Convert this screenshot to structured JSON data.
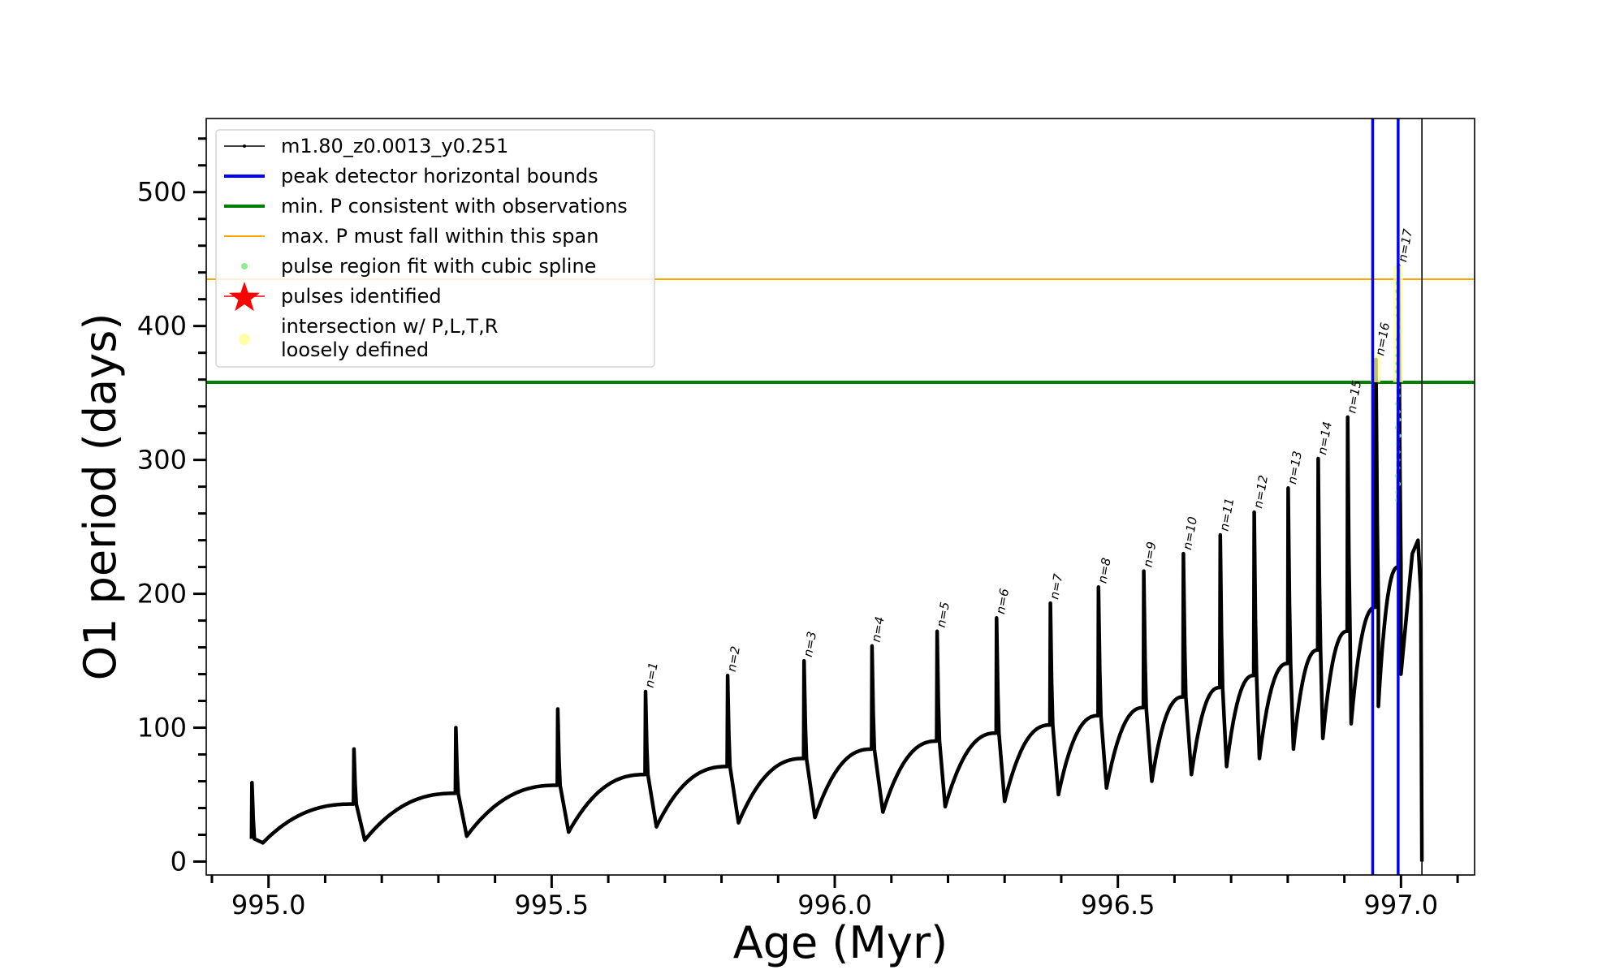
{
  "chart_data": {
    "type": "line",
    "xlabel": "Age (Myr)",
    "ylabel": "O1 period (days)",
    "xlim": [
      994.89,
      997.13
    ],
    "ylim": [
      -10,
      555
    ],
    "x_ticks": [
      995.0,
      995.5,
      996.0,
      996.5,
      997.0
    ],
    "x_tick_labels": [
      "995.0",
      "995.5",
      "996.0",
      "996.5",
      "997.0"
    ],
    "y_ticks": [
      0,
      100,
      200,
      300,
      400,
      500
    ],
    "y_tick_labels": [
      "0",
      "100",
      "200",
      "300",
      "400",
      "500"
    ],
    "grid": false,
    "legend_position": "upper-left",
    "legend": [
      {
        "label": "m1.80_z0.0013_y0.251",
        "style": "line-marker",
        "color": "#000000"
      },
      {
        "label": "peak detector horizontal bounds",
        "style": "line",
        "color": "#0000ff"
      },
      {
        "label": "min. P consistent with observations",
        "style": "line",
        "color": "#008000"
      },
      {
        "label": "max. P must fall within this span",
        "style": "thin-line",
        "color": "#ffa500"
      },
      {
        "label": "pulse region fit with cubic spline",
        "style": "dot",
        "color": "#90ee90"
      },
      {
        "label": "pulses identified",
        "style": "star",
        "color": "#ff0000"
      },
      {
        "label": "intersection w/ P,L,T,R",
        "label2": "loosely defined",
        "style": "dot",
        "color": "#ffffaa"
      }
    ],
    "series": [
      {
        "name": "m1.80_z0.0013_y0.251",
        "color": "#000000",
        "pulses": [
          {
            "age": 994.97,
            "peak": 59,
            "start": 17,
            "min_dip": 14,
            "min_age": 994.99
          },
          {
            "age": 995.15,
            "peak": 84,
            "start": 43,
            "min_dip": 16,
            "min_age": 995.17
          },
          {
            "age": 995.33,
            "peak": 100,
            "start": 51,
            "min_dip": 19,
            "min_age": 995.35
          },
          {
            "age": 995.51,
            "peak": 114,
            "start": 57,
            "min_dip": 22,
            "min_age": 995.53
          },
          {
            "age": 995.665,
            "peak": 127,
            "start": 65,
            "min_dip": 26,
            "min_age": 995.685
          },
          {
            "age": 995.81,
            "peak": 139,
            "start": 71,
            "min_dip": 29,
            "min_age": 995.83
          },
          {
            "age": 995.945,
            "peak": 150,
            "start": 77,
            "min_dip": 33,
            "min_age": 995.965
          },
          {
            "age": 996.065,
            "peak": 161,
            "start": 84,
            "min_dip": 37,
            "min_age": 996.085
          },
          {
            "age": 996.18,
            "peak": 172,
            "start": 90,
            "min_dip": 41,
            "min_age": 996.195
          },
          {
            "age": 996.285,
            "peak": 182,
            "start": 96,
            "min_dip": 45,
            "min_age": 996.3
          },
          {
            "age": 996.38,
            "peak": 193,
            "start": 102,
            "min_dip": 50,
            "min_age": 996.395
          },
          {
            "age": 996.465,
            "peak": 205,
            "start": 109,
            "min_dip": 55,
            "min_age": 996.48
          },
          {
            "age": 996.545,
            "peak": 217,
            "start": 115,
            "min_dip": 60,
            "min_age": 996.56
          },
          {
            "age": 996.615,
            "peak": 230,
            "start": 123,
            "min_dip": 65,
            "min_age": 996.63
          },
          {
            "age": 996.68,
            "peak": 244,
            "start": 130,
            "min_dip": 71,
            "min_age": 996.692
          },
          {
            "age": 996.74,
            "peak": 261,
            "start": 139,
            "min_dip": 77,
            "min_age": 996.75
          },
          {
            "age": 996.8,
            "peak": 279,
            "start": 148,
            "min_dip": 84,
            "min_age": 996.81
          },
          {
            "age": 996.853,
            "peak": 301,
            "start": 158,
            "min_dip": 92,
            "min_age": 996.862
          },
          {
            "age": 996.905,
            "peak": 332,
            "start": 172,
            "min_dip": 103,
            "min_age": 996.912
          },
          {
            "age": 996.955,
            "peak": 375,
            "start": 190,
            "min_dip": 116,
            "min_age": 996.96
          },
          {
            "age": 996.995,
            "peak": 445,
            "start": 220,
            "min_dip": 140,
            "min_age": 997.0
          }
        ],
        "final_branch": [
          [
            997.0,
            140
          ],
          [
            997.02,
            230
          ],
          [
            997.03,
            240
          ],
          [
            997.035,
            200
          ],
          [
            997.037,
            0
          ]
        ]
      }
    ],
    "pulse_labels": [
      "n=1",
      "n=2",
      "n=3",
      "n=4",
      "n=5",
      "n=6",
      "n=7",
      "n=8",
      "n=9",
      "n=10",
      "n=11",
      "n=12",
      "n=13",
      "n=14",
      "n=15",
      "n=16",
      "n=17"
    ],
    "pulse_label_ages": [
      995.665,
      995.81,
      995.945,
      996.065,
      996.18,
      996.285,
      996.38,
      996.465,
      996.545,
      996.615,
      996.68,
      996.74,
      996.8,
      996.853,
      996.905,
      996.955,
      996.995
    ],
    "pulse_label_periods": [
      127,
      139,
      150,
      161,
      172,
      182,
      193,
      205,
      217,
      230,
      244,
      261,
      279,
      301,
      332,
      375,
      445
    ],
    "vertical_lines": [
      {
        "x": 996.95,
        "color": "#0000ff"
      },
      {
        "x": 996.995,
        "color": "#0000ff"
      },
      {
        "x": 997.037,
        "color": "#000000"
      }
    ],
    "horizontal_lines": [
      {
        "y": 358,
        "color": "#008000"
      },
      {
        "y": 435,
        "color": "#ffa500"
      }
    ],
    "spline_region": {
      "x": 996.995,
      "y_from": 270,
      "y_to": 445,
      "color": "#90ee90"
    },
    "loosely_defined_regions": [
      {
        "x": 996.955,
        "y_from": 358,
        "y_to": 378
      },
      {
        "x": 996.995,
        "y_from": 358,
        "y_to": 445
      }
    ]
  }
}
